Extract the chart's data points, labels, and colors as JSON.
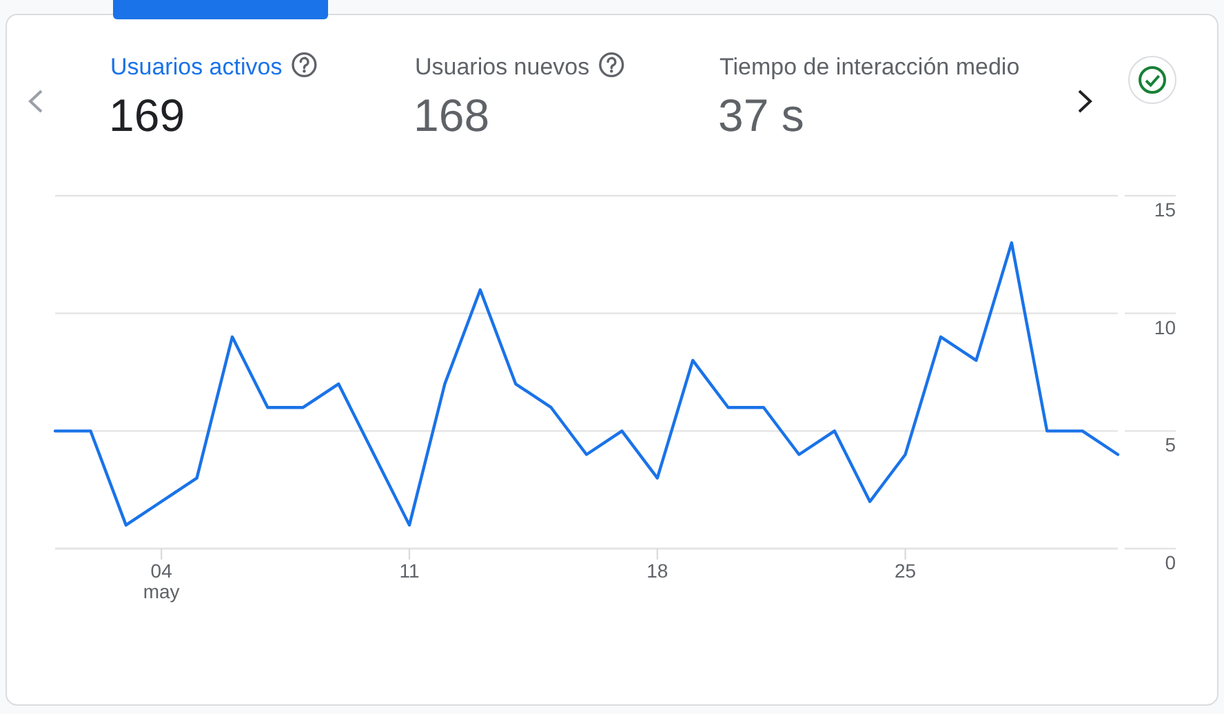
{
  "chart_data": {
    "type": "line",
    "title": "Usuarios activos",
    "subtitle": "169",
    "annotations": [
      "Usuarios nuevos",
      "168",
      "Tiempo de interacción medio",
      "37 s"
    ],
    "x": [
      "--05-01",
      "--05-02",
      "--05-03",
      "--05-04",
      "--05-05",
      "--05-06",
      "--05-07",
      "--05-08",
      "--05-09",
      "--05-10",
      "--05-11",
      "--05-12",
      "--05-13",
      "--05-14",
      "--05-15",
      "--05-16",
      "--05-17",
      "--05-18",
      "--05-19",
      "--05-20",
      "--05-21",
      "--05-22",
      "--05-23",
      "--05-24",
      "--05-25",
      "--05-26",
      "--05-27",
      "--05-28",
      "--05-29",
      "--05-30",
      "--05-31"
    ],
    "series": [
      {
        "color": "#1a73e8",
        "values": [
          5,
          5,
          1,
          2,
          3,
          9,
          6,
          6,
          7,
          4,
          1,
          7,
          11,
          7,
          6,
          4,
          5,
          3,
          8,
          6,
          6,
          4,
          5,
          2,
          4,
          9,
          8,
          13,
          5,
          5,
          4
        ]
      }
    ],
    "xlim": [
      "--05-01",
      "--05-31"
    ],
    "xticks": [
      {
        "value": "--05-04",
        "label": "04\nmay"
      },
      {
        "value": "--05-11",
        "label": "11"
      },
      {
        "value": "--05-18",
        "label": "18"
      },
      {
        "value": "--05-25",
        "label": "25"
      }
    ],
    "ylim": [
      0,
      15
    ],
    "yticks": [
      0,
      5,
      10,
      15
    ],
    "grid": "y",
    "line_style": "solid"
  }
}
